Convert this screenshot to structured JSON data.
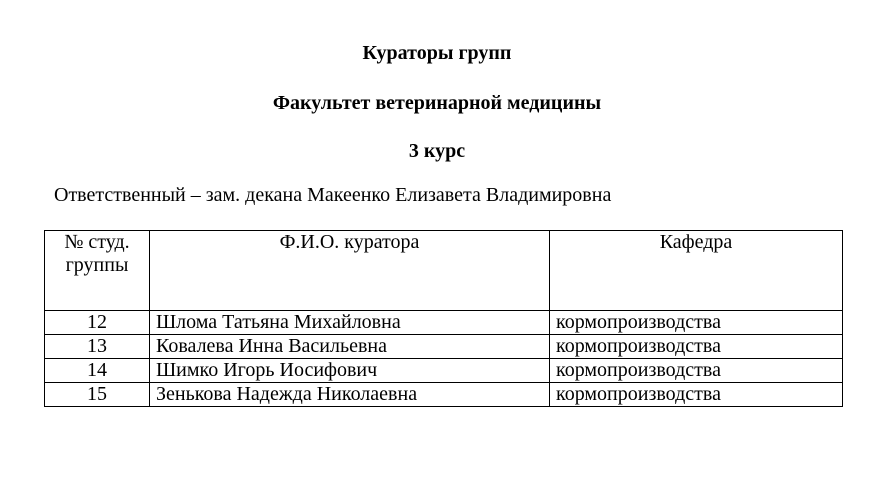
{
  "title": "Кураторы групп",
  "faculty": "Факультет ветеринарной медицины",
  "course": "3 курс",
  "responsible": "Ответственный – зам. декана Макеенко Елизавета Владимировна",
  "table": {
    "headers": [
      "№ студ. группы",
      "Ф.И.О. куратора",
      "Кафедра"
    ],
    "rows": [
      [
        "12",
        "Шлома Татьяна Михайловна",
        "кормопроизводства"
      ],
      [
        "13",
        "Ковалева Инна Васильевна",
        "кормопроизводства"
      ],
      [
        "14",
        "Шимко Игорь Иосифович",
        "кормопроизводства"
      ],
      [
        "15",
        "Зенькова Надежда Николаевна",
        "кормопроизводства"
      ]
    ]
  }
}
